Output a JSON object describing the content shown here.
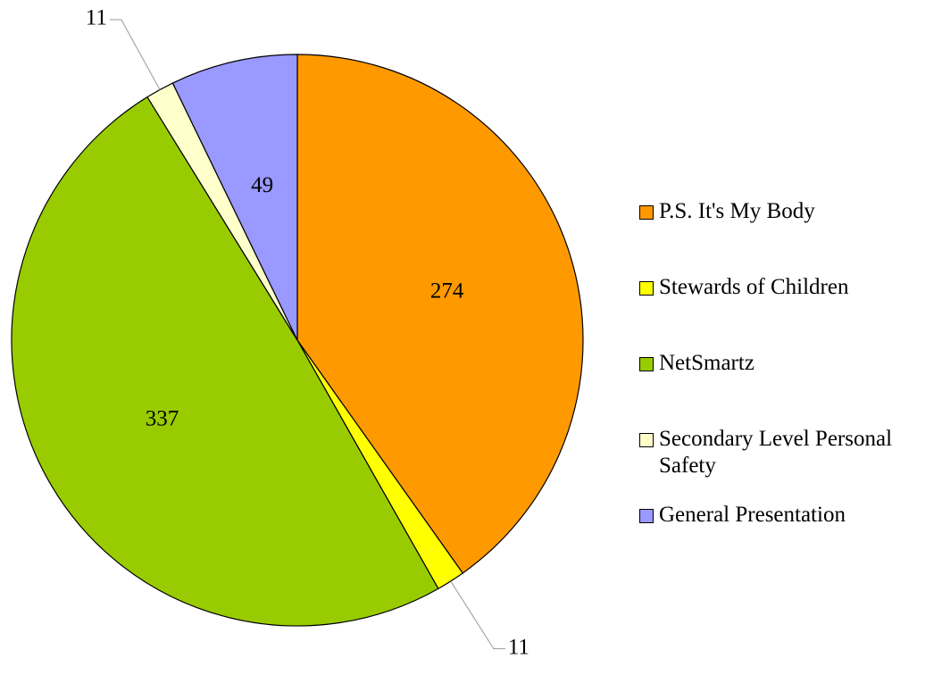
{
  "chart_data": {
    "type": "pie",
    "categories": [
      "P.S. It's My Body",
      "Stewards of Children",
      "NetSmartz",
      "Secondary Level Personal Safety",
      "General Presentation"
    ],
    "values": [
      274,
      11,
      337,
      11,
      49
    ],
    "colors": [
      "#ff9900",
      "#ffff00",
      "#99cc00",
      "#ffffcc",
      "#9999ff"
    ],
    "legend": "right"
  }
}
